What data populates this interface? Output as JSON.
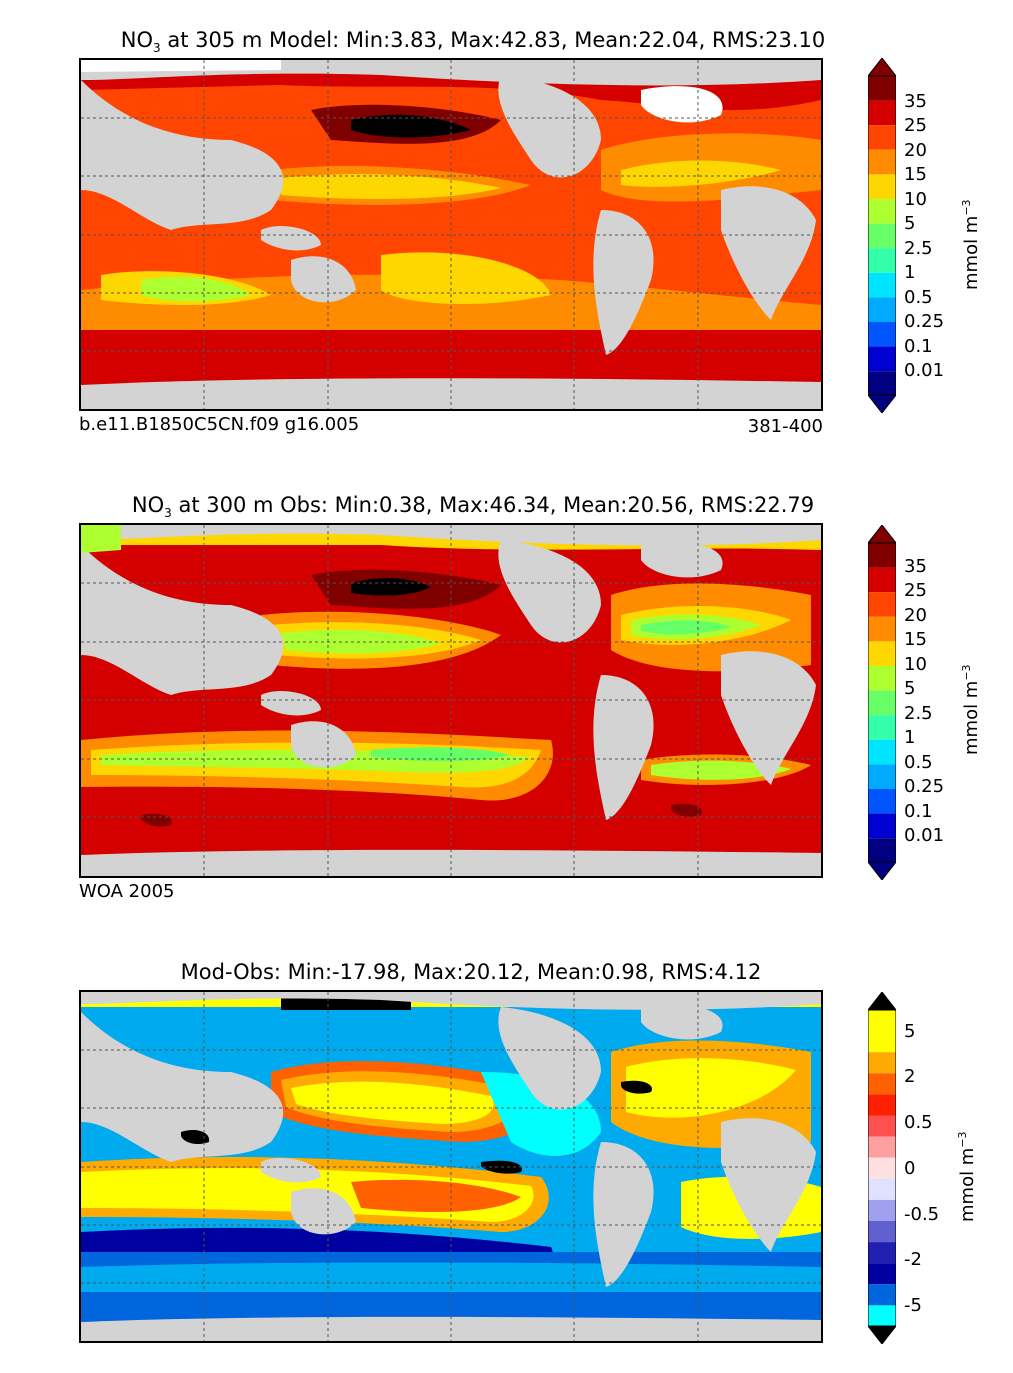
{
  "panels": [
    {
      "id": "model",
      "title_prefix": "NO",
      "title_sub": "3",
      "title_rest": "at 305 m Model: Min:3.83, Max:42.83, Mean:22.04, RMS:23.10",
      "note_left": "b.e11.B1850C5CN.f09 g16.005",
      "note_right": "381-400",
      "units": "mmol m",
      "units_exp": "−3",
      "ticks": [
        "35",
        "25",
        "20",
        "15",
        "10",
        "5",
        "2.5",
        "1",
        "0.5",
        "0.25",
        "0.1",
        "0.01"
      ]
    },
    {
      "id": "obs",
      "title_prefix": "NO",
      "title_sub": "3",
      "title_rest": "at 300 m Obs: Min:0.38, Max:46.34, Mean:20.56, RMS:22.79",
      "note_left": "WOA 2005",
      "note_right": "",
      "units": "mmol m",
      "units_exp": "−3",
      "ticks": [
        "35",
        "25",
        "20",
        "15",
        "10",
        "5",
        "2.5",
        "1",
        "0.5",
        "0.25",
        "0.1",
        "0.01"
      ]
    },
    {
      "id": "diff",
      "title_prefix": "",
      "title_sub": "",
      "title_rest": "Mod-Obs: Min:-17.98, Max:20.12, Mean:0.98, RMS:4.12",
      "note_left": "",
      "note_right": "",
      "units": "mmol m",
      "units_exp": "−3",
      "ticks": [
        "5",
        "2",
        "0.5",
        "0",
        "-0.5",
        "-2",
        "-5"
      ]
    }
  ],
  "colors": {
    "land": "#d3d3d3",
    "seq_colorbar_top_to_bottom": [
      "#800000",
      "#d40000",
      "#ff4500",
      "#ff8c00",
      "#ffd700",
      "#adff2f",
      "#66ff66",
      "#33ffaa",
      "#00e5ff",
      "#00aaff",
      "#0055ff",
      "#0000d0",
      "#000080"
    ],
    "div_colorbar_top_to_bottom": [
      "#ffff00",
      "#ffaa00",
      "#ff6000",
      "#ff2000",
      "#ff5050",
      "#ffa0a0",
      "#ffe0e0",
      "#e0e0ff",
      "#a0a0ee",
      "#6060d0",
      "#2020b0",
      "#0000a0",
      "#0066dd",
      "#00aaee",
      "#00ffff"
    ]
  }
}
